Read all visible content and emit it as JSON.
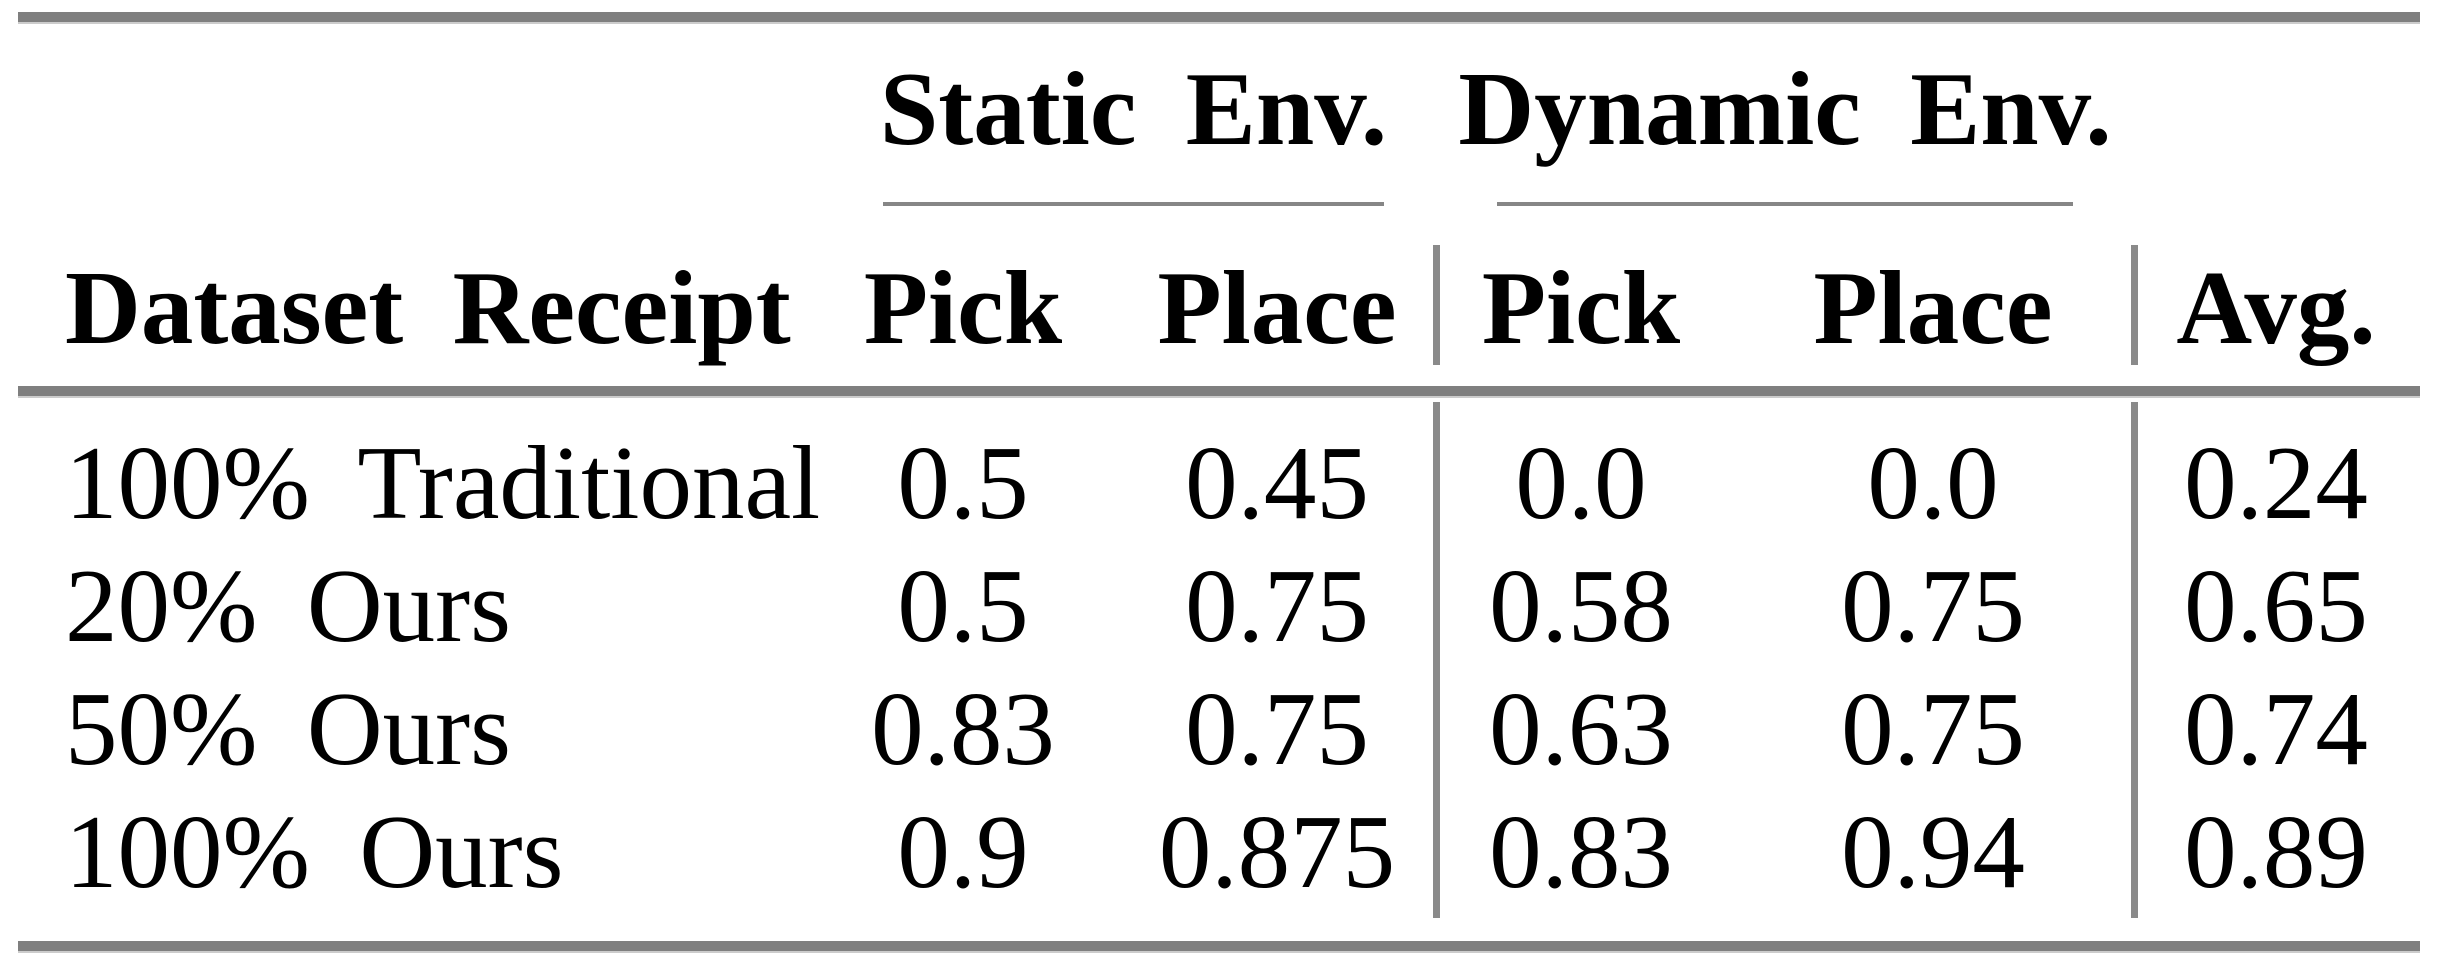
{
  "table": {
    "group_headers": [
      {
        "label": "Static Env."
      },
      {
        "label": "Dynamic Env."
      }
    ],
    "columns": {
      "label": "Dataset Receipt",
      "static_pick": "Pick",
      "static_place": "Place",
      "dynamic_pick": "Pick",
      "dynamic_place": "Place",
      "avg": "Avg."
    },
    "rows": [
      {
        "label": "100% Traditional",
        "static_pick": "0.5",
        "static_place": "0.45",
        "dynamic_pick": "0.0",
        "dynamic_place": "0.0",
        "avg": "0.24"
      },
      {
        "label": "20% Ours",
        "static_pick": "0.5",
        "static_place": "0.75",
        "dynamic_pick": "0.58",
        "dynamic_place": "0.75",
        "avg": "0.65"
      },
      {
        "label": "50% Ours",
        "static_pick": "0.83",
        "static_place": "0.75",
        "dynamic_pick": "0.63",
        "dynamic_place": "0.75",
        "avg": "0.74"
      },
      {
        "label": "100% Ours",
        "static_pick": "0.9",
        "static_place": "0.875",
        "dynamic_pick": "0.83",
        "dynamic_place": "0.94",
        "avg": "0.89"
      }
    ],
    "colors": {
      "thick_rule": "#7f7f7f",
      "thin_rule": "#868686",
      "divider": "#8a8a8a",
      "text": "#000000",
      "background": "#ffffff"
    }
  }
}
